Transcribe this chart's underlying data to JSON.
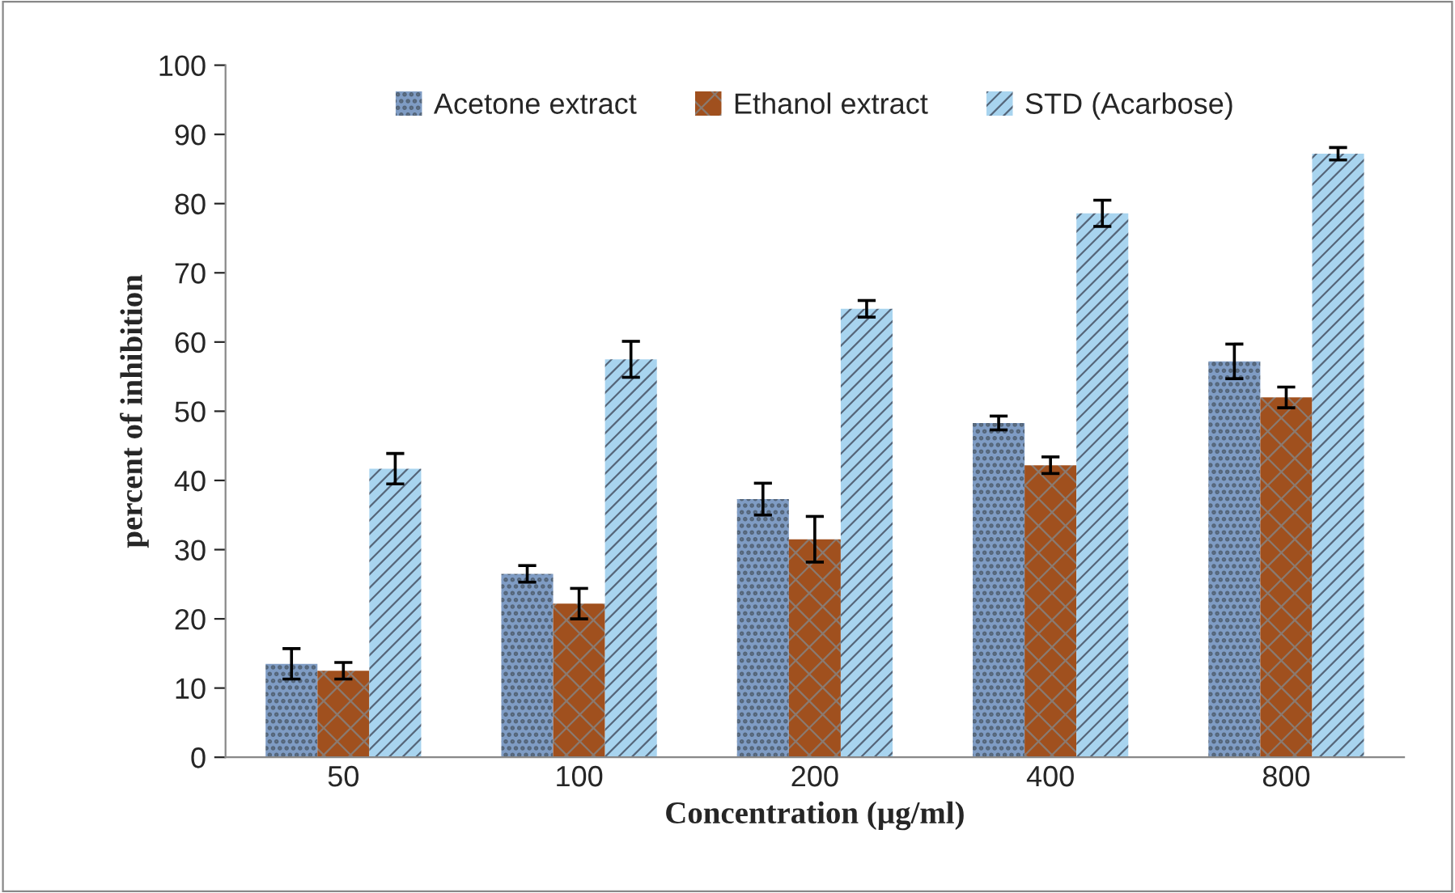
{
  "chart_data": {
    "type": "bar",
    "xlabel": "Concentration (µg/ml)",
    "ylabel": "percent of inhibition",
    "categories": [
      "50",
      "100",
      "200",
      "400",
      "800"
    ],
    "series": [
      {
        "name": "Acetone extract",
        "color": "#7f9cc4",
        "values": [
          13.5,
          26.5,
          37.3,
          48.3,
          57.2
        ],
        "errors": [
          2.2,
          1.2,
          2.3,
          1.0,
          2.5
        ]
      },
      {
        "name": "Ethanol extract",
        "color": "#a0501e",
        "values": [
          12.5,
          22.2,
          31.5,
          42.2,
          52.0
        ],
        "errors": [
          1.2,
          2.2,
          3.3,
          1.2,
          1.5
        ]
      },
      {
        "name": "STD (Acarbose)",
        "color": "#a8d4ef",
        "values": [
          41.7,
          57.5,
          64.8,
          78.6,
          87.2
        ],
        "errors": [
          2.2,
          2.6,
          1.2,
          1.9,
          0.9
        ]
      }
    ],
    "ylim": [
      0,
      100
    ],
    "yticks": [
      0,
      10,
      20,
      30,
      40,
      50,
      60,
      70,
      80,
      90,
      100
    ],
    "grid": false,
    "legend": "top"
  }
}
